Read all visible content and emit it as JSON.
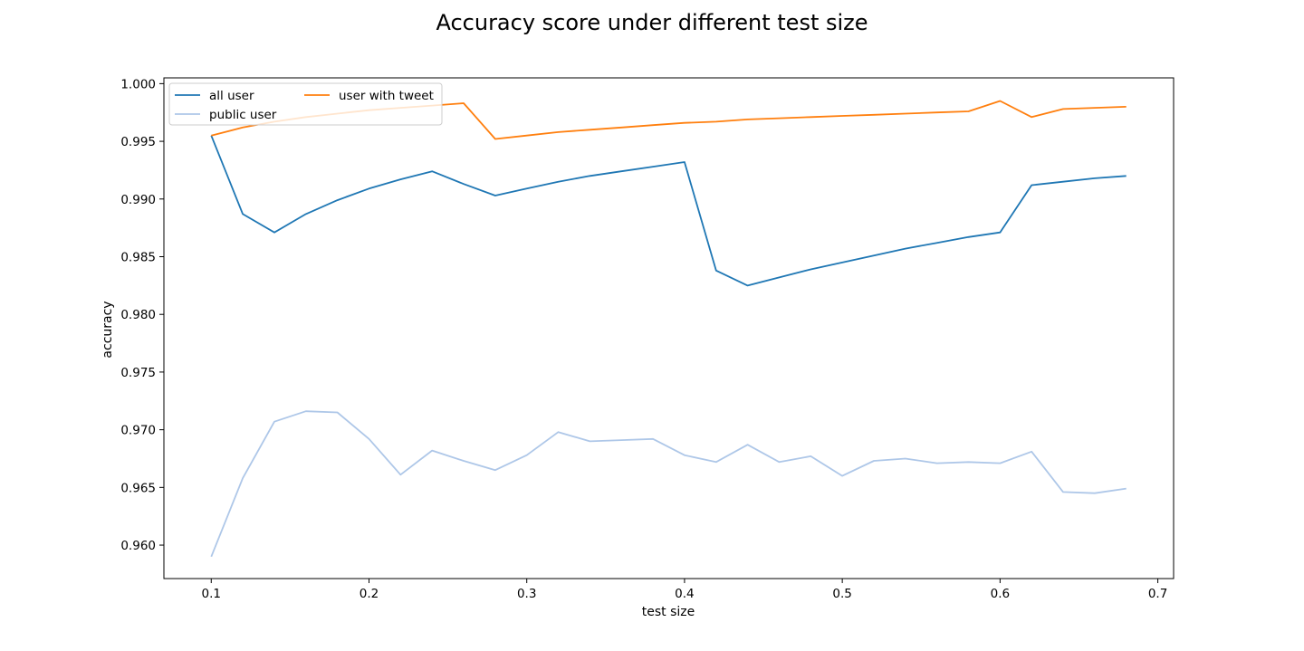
{
  "chart_data": {
    "type": "line",
    "title": "Accuracy score under different test size",
    "xlabel": "test size",
    "ylabel": "accuracy",
    "xlim": [
      0.07,
      0.71
    ],
    "ylim": [
      0.9571,
      1.0005
    ],
    "xticks": [
      0.1,
      0.2,
      0.3,
      0.4,
      0.5,
      0.6,
      0.7
    ],
    "xtick_labels": [
      "0.1",
      "0.2",
      "0.3",
      "0.4",
      "0.5",
      "0.6",
      "0.7"
    ],
    "yticks": [
      0.96,
      0.965,
      0.97,
      0.975,
      0.98,
      0.985,
      0.99,
      0.995,
      1.0
    ],
    "ytick_labels": [
      "0.960",
      "0.965",
      "0.970",
      "0.975",
      "0.980",
      "0.985",
      "0.990",
      "0.995",
      "1.000"
    ],
    "grid": false,
    "legend_position": "top-left",
    "x": [
      0.1,
      0.12,
      0.14,
      0.16,
      0.18,
      0.2,
      0.22,
      0.24,
      0.26,
      0.28,
      0.3,
      0.32,
      0.34,
      0.36,
      0.38,
      0.4,
      0.42,
      0.44,
      0.46,
      0.48,
      0.5,
      0.52,
      0.54,
      0.56,
      0.58,
      0.6,
      0.62,
      0.64,
      0.66,
      0.68
    ],
    "series": [
      {
        "name": "all user",
        "color": "#1f77b4",
        "values": [
          0.9955,
          0.9887,
          0.9871,
          0.9887,
          0.9899,
          0.9909,
          0.9917,
          0.9924,
          0.9913,
          0.9903,
          0.9909,
          0.9915,
          0.992,
          0.9924,
          0.9928,
          0.9932,
          0.9838,
          0.9825,
          0.9832,
          0.9839,
          0.9845,
          0.9851,
          0.9857,
          0.9862,
          0.9867,
          0.9871,
          0.9912,
          0.9915,
          0.9918,
          0.992
        ]
      },
      {
        "name": "public user",
        "color": "#aec7e8",
        "values": [
          0.959,
          0.9658,
          0.9707,
          0.9716,
          0.9715,
          0.9692,
          0.9661,
          0.9682,
          0.9673,
          0.9665,
          0.9678,
          0.9698,
          0.969,
          0.9691,
          0.9692,
          0.9678,
          0.9672,
          0.9687,
          0.9672,
          0.9677,
          0.966,
          0.9673,
          0.9675,
          0.9671,
          0.9672,
          0.9671,
          0.9681,
          0.9646,
          0.9645,
          0.9649
        ]
      },
      {
        "name": "user with tweet",
        "color": "#ff7f0e",
        "values": [
          0.9955,
          0.9962,
          0.9967,
          0.9971,
          0.9974,
          0.9977,
          0.9979,
          0.9981,
          0.9983,
          0.9952,
          0.9955,
          0.9958,
          0.996,
          0.9962,
          0.9964,
          0.9966,
          0.9967,
          0.9969,
          0.997,
          0.9971,
          0.9972,
          0.9973,
          0.9974,
          0.9975,
          0.9976,
          0.9985,
          0.9971,
          0.9978,
          0.9979,
          0.998
        ]
      }
    ]
  }
}
